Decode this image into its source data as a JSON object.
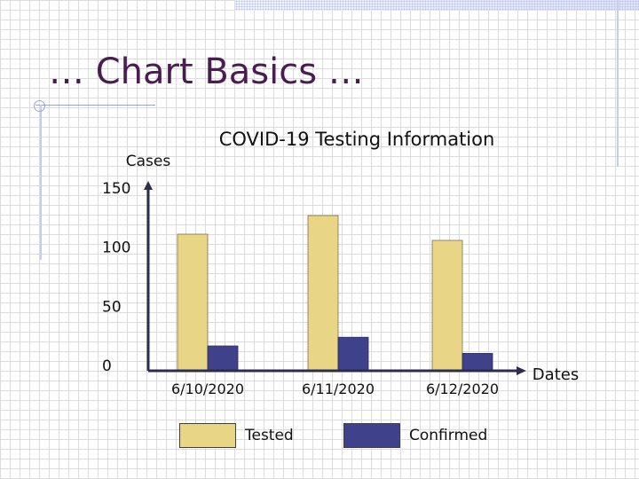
{
  "slide": {
    "title": "… Chart Basics …"
  },
  "colors": {
    "title": "#4a1c52",
    "tested": "#e8d585",
    "confirmed": "#3f418b",
    "axis": "#2d2d4d"
  },
  "chart_data": {
    "type": "bar",
    "title": "COVID-19 Testing Information",
    "ylabel": "Cases",
    "xlabel": "Dates",
    "categories": [
      "6/10/2020",
      "6/11/2020",
      "6/12/2020"
    ],
    "series": [
      {
        "name": "Tested",
        "values": [
          110,
          125,
          105
        ]
      },
      {
        "name": "Confirmed",
        "values": [
          20,
          27,
          14
        ]
      }
    ],
    "yticks": [
      0,
      50,
      100,
      150
    ],
    "ylim": [
      0,
      150
    ],
    "grid": false,
    "legend": "bottom"
  }
}
